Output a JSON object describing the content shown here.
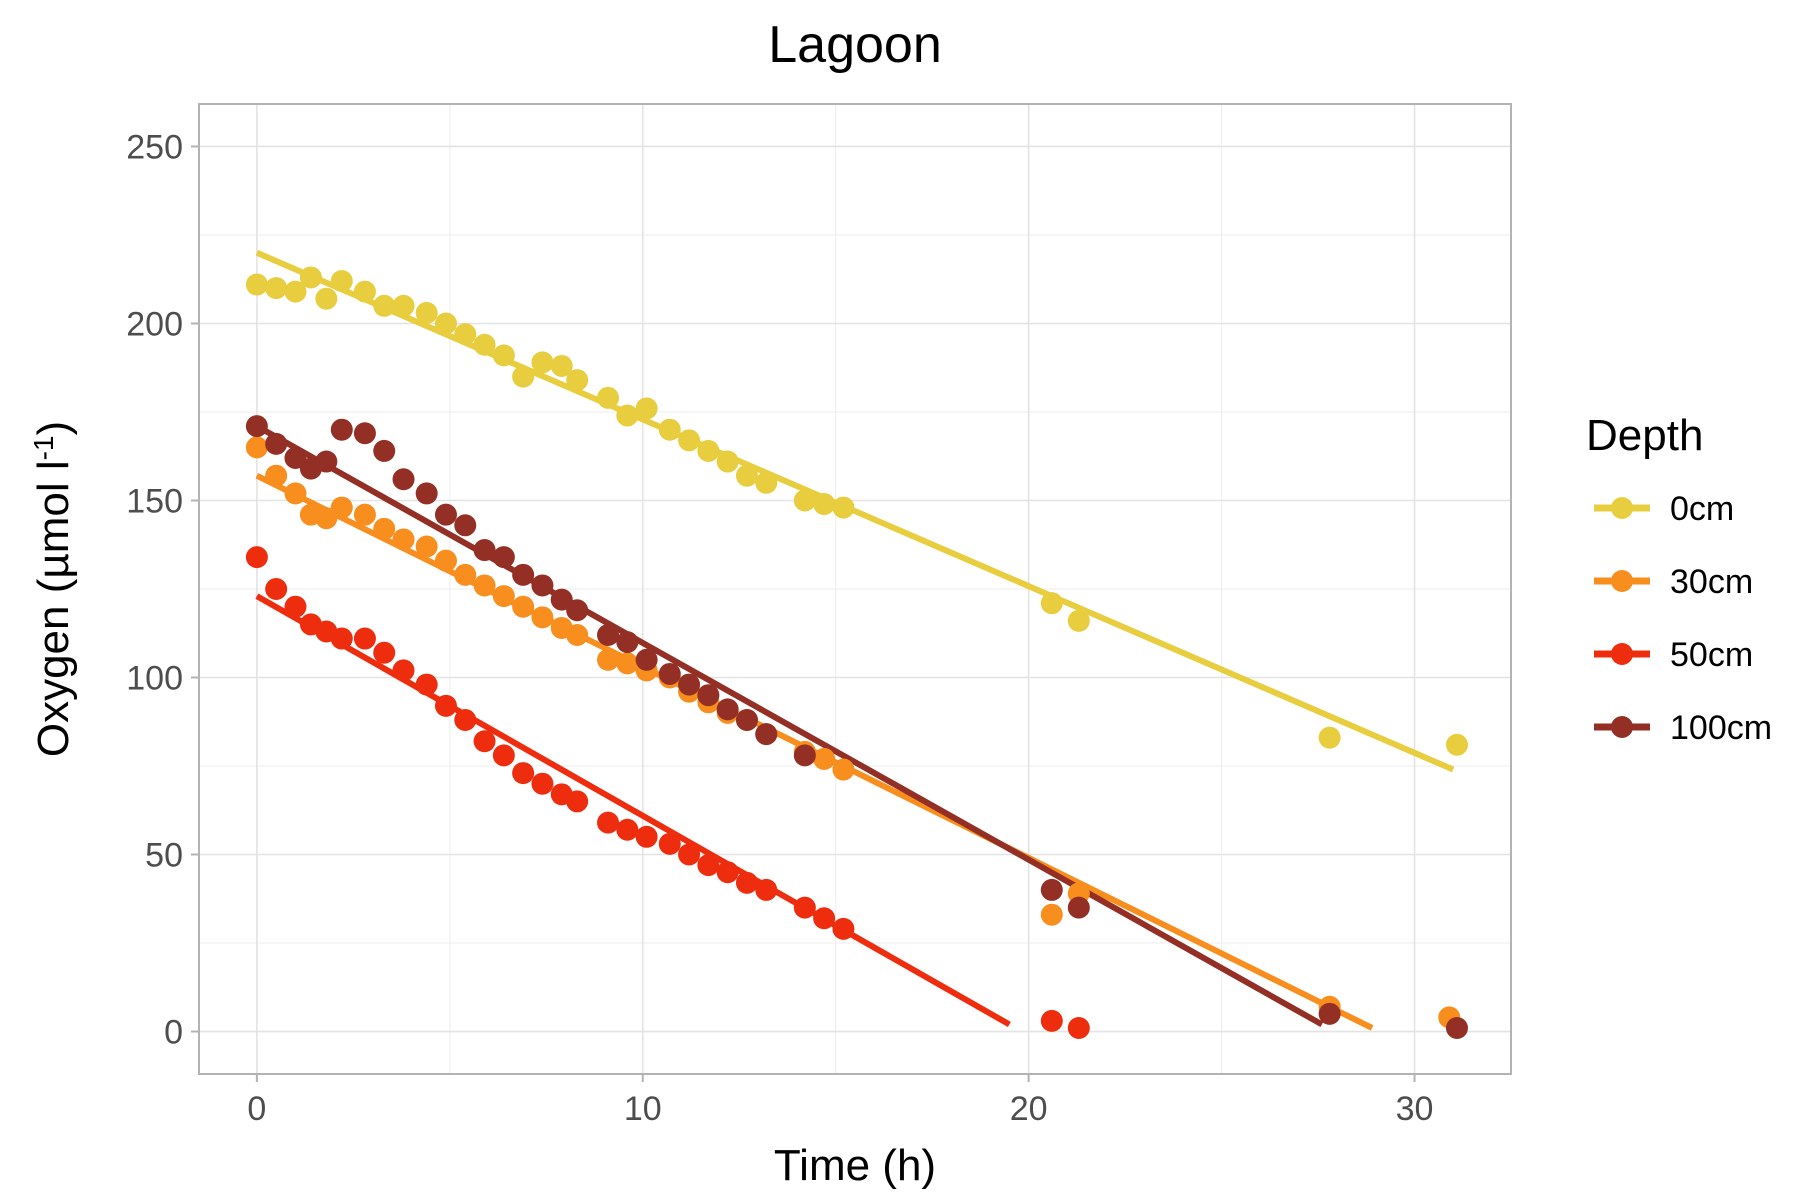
{
  "chart_data": {
    "type": "scatter",
    "title": "Lagoon",
    "xlabel": "Time (h)",
    "ylabel": "Oxygen (µmol l⁻¹)",
    "ylabel_main": "Oxygen (µmol l",
    "ylabel_sup": "-1",
    "ylabel_end": ")",
    "xlim": [
      -1.5,
      32.5
    ],
    "ylim": [
      -12,
      262
    ],
    "xticks": [
      0,
      10,
      20,
      30
    ],
    "yticks": [
      0,
      50,
      100,
      150,
      200,
      250
    ],
    "grid": true,
    "legend": {
      "title": "Depth",
      "position": "right"
    },
    "series": [
      {
        "name": "0cm",
        "color": "#E8CD3F",
        "fit": [
          [
            0,
            220
          ],
          [
            31,
            74
          ]
        ],
        "points": [
          [
            0,
            211
          ],
          [
            0.5,
            210
          ],
          [
            1,
            209
          ],
          [
            1.4,
            213
          ],
          [
            1.8,
            207
          ],
          [
            2.2,
            212
          ],
          [
            2.8,
            209
          ],
          [
            3.3,
            205
          ],
          [
            3.8,
            205
          ],
          [
            4.4,
            203
          ],
          [
            4.9,
            200
          ],
          [
            5.4,
            197
          ],
          [
            5.9,
            194
          ],
          [
            6.4,
            191
          ],
          [
            6.9,
            185
          ],
          [
            7.4,
            189
          ],
          [
            7.9,
            188
          ],
          [
            8.3,
            184
          ],
          [
            9.1,
            179
          ],
          [
            9.6,
            174
          ],
          [
            10.1,
            176
          ],
          [
            10.7,
            170
          ],
          [
            11.2,
            167
          ],
          [
            11.7,
            164
          ],
          [
            12.2,
            161
          ],
          [
            12.7,
            157
          ],
          [
            13.2,
            155
          ],
          [
            14.2,
            150
          ],
          [
            14.7,
            149
          ],
          [
            15.2,
            148
          ],
          [
            20.6,
            121
          ],
          [
            21.3,
            116
          ],
          [
            27.8,
            83
          ],
          [
            31.1,
            81
          ]
        ]
      },
      {
        "name": "30cm",
        "color": "#F78E1E",
        "fit": [
          [
            0,
            157
          ],
          [
            28.9,
            1
          ]
        ],
        "points": [
          [
            0,
            165
          ],
          [
            0.5,
            157
          ],
          [
            1,
            152
          ],
          [
            1.4,
            146
          ],
          [
            1.8,
            145
          ],
          [
            2.2,
            148
          ],
          [
            2.8,
            146
          ],
          [
            3.3,
            142
          ],
          [
            3.8,
            139
          ],
          [
            4.4,
            137
          ],
          [
            4.9,
            133
          ],
          [
            5.4,
            129
          ],
          [
            5.9,
            126
          ],
          [
            6.4,
            123
          ],
          [
            6.9,
            120
          ],
          [
            7.4,
            117
          ],
          [
            7.9,
            114
          ],
          [
            8.3,
            112
          ],
          [
            9.1,
            105
          ],
          [
            9.6,
            104
          ],
          [
            10.1,
            102
          ],
          [
            10.7,
            100
          ],
          [
            11.2,
            96
          ],
          [
            11.7,
            93
          ],
          [
            12.2,
            90
          ],
          [
            12.7,
            88
          ],
          [
            13.2,
            84
          ],
          [
            14.2,
            79
          ],
          [
            14.7,
            77
          ],
          [
            15.2,
            74
          ],
          [
            20.6,
            33
          ],
          [
            21.3,
            39
          ],
          [
            27.8,
            7
          ],
          [
            30.9,
            4
          ]
        ]
      },
      {
        "name": "50cm",
        "color": "#EE2D0E",
        "fit": [
          [
            0,
            123
          ],
          [
            19.5,
            2
          ]
        ],
        "points": [
          [
            0,
            134
          ],
          [
            0.5,
            125
          ],
          [
            1,
            120
          ],
          [
            1.4,
            115
          ],
          [
            1.8,
            113
          ],
          [
            2.2,
            111
          ],
          [
            2.8,
            111
          ],
          [
            3.3,
            107
          ],
          [
            3.8,
            102
          ],
          [
            4.4,
            98
          ],
          [
            4.9,
            92
          ],
          [
            5.4,
            88
          ],
          [
            5.9,
            82
          ],
          [
            6.4,
            78
          ],
          [
            6.9,
            73
          ],
          [
            7.4,
            70
          ],
          [
            7.9,
            67
          ],
          [
            8.3,
            65
          ],
          [
            9.1,
            59
          ],
          [
            9.6,
            57
          ],
          [
            10.1,
            55
          ],
          [
            10.7,
            53
          ],
          [
            11.2,
            50
          ],
          [
            11.7,
            47
          ],
          [
            12.2,
            45
          ],
          [
            12.7,
            42
          ],
          [
            13.2,
            40
          ],
          [
            14.2,
            35
          ],
          [
            14.7,
            32
          ],
          [
            15.2,
            29
          ],
          [
            20.6,
            3
          ],
          [
            21.3,
            1
          ]
        ]
      },
      {
        "name": "100cm",
        "color": "#932F24",
        "fit": [
          [
            0,
            171
          ],
          [
            27.6,
            2
          ]
        ],
        "points": [
          [
            0,
            171
          ],
          [
            0.5,
            166
          ],
          [
            1,
            162
          ],
          [
            1.4,
            159
          ],
          [
            1.8,
            161
          ],
          [
            2.2,
            170
          ],
          [
            2.8,
            169
          ],
          [
            3.3,
            164
          ],
          [
            3.8,
            156
          ],
          [
            4.4,
            152
          ],
          [
            4.9,
            146
          ],
          [
            5.4,
            143
          ],
          [
            5.9,
            136
          ],
          [
            6.4,
            134
          ],
          [
            6.9,
            129
          ],
          [
            7.4,
            126
          ],
          [
            7.9,
            122
          ],
          [
            8.3,
            119
          ],
          [
            9.1,
            112
          ],
          [
            9.6,
            110
          ],
          [
            10.1,
            105
          ],
          [
            10.7,
            101
          ],
          [
            11.2,
            98
          ],
          [
            11.7,
            95
          ],
          [
            12.2,
            91
          ],
          [
            12.7,
            88
          ],
          [
            13.2,
            84
          ],
          [
            14.2,
            78
          ],
          [
            20.6,
            40
          ],
          [
            21.3,
            35
          ],
          [
            27.8,
            5
          ],
          [
            31.1,
            1
          ]
        ]
      }
    ]
  }
}
